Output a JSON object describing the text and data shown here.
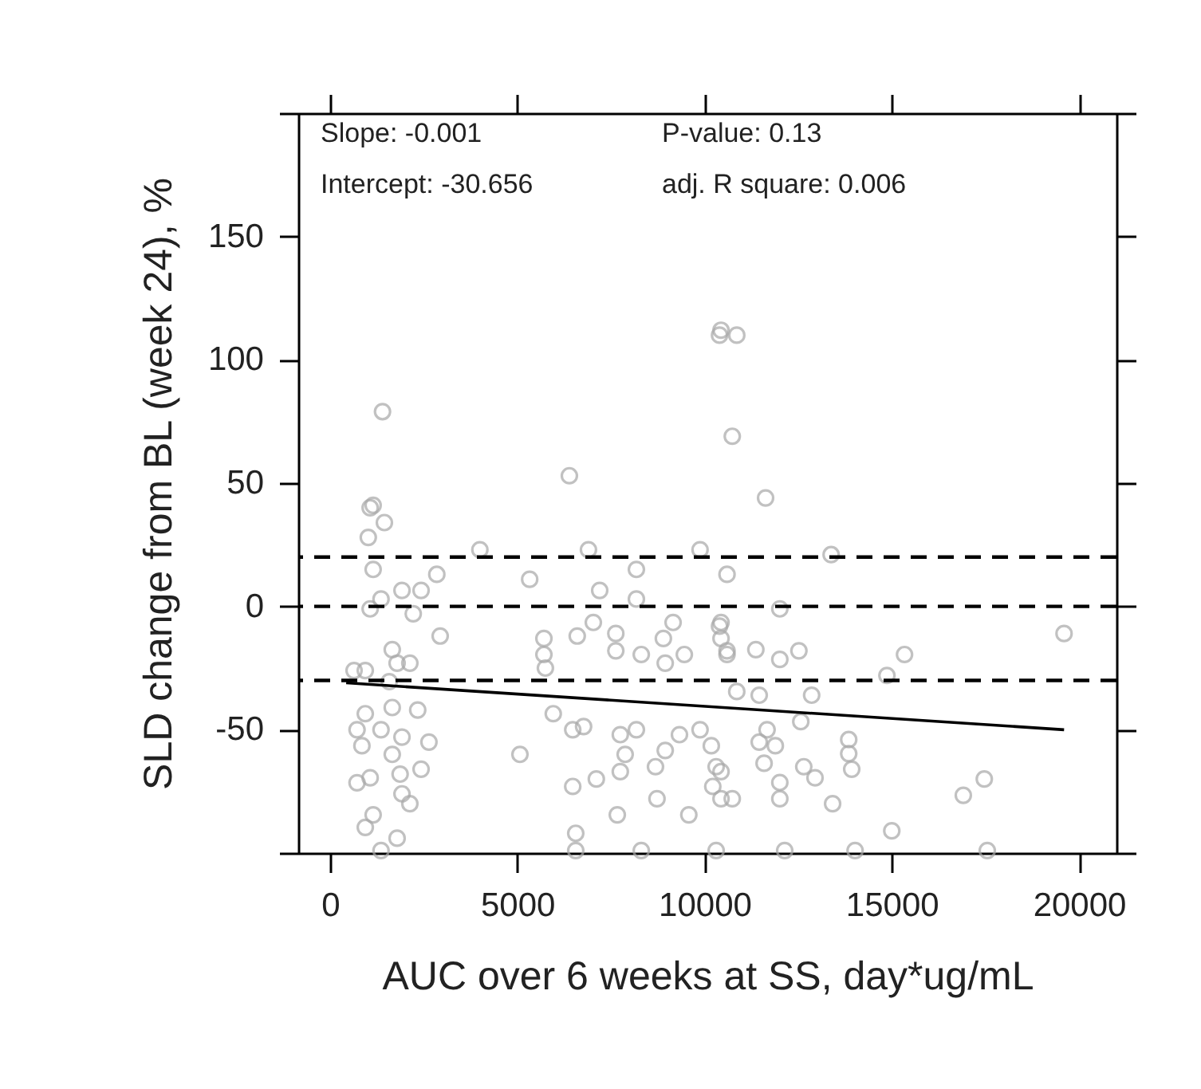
{
  "chart_data": {
    "type": "scatter",
    "xlabel": "AUC over 6 weeks at SS, day*ug/mL",
    "ylabel": "SLD change from BL (week 24), %",
    "annotations": [
      "Slope: -0.001",
      "P-value: 0.13",
      "Intercept: -30.656",
      "adj. R square: 0.006"
    ],
    "xlim": [
      -850,
      21000
    ],
    "ylim": [
      -100,
      200
    ],
    "xticks": [
      0,
      5000,
      10000,
      15000,
      20000
    ],
    "yticks": [
      {
        "value": -100,
        "label": null
      },
      -50,
      0,
      50,
      100,
      150,
      {
        "value": 200,
        "label": null
      }
    ],
    "grid": false,
    "ref_lines": [
      {
        "axis": "y",
        "value": 20,
        "line_style": "dashed",
        "color": "#000000"
      },
      {
        "axis": "y",
        "value": 0,
        "line_style": "dashed",
        "color": "#000000"
      },
      {
        "axis": "y",
        "value": -30,
        "line_style": "dashed",
        "color": "#000000"
      }
    ],
    "series": [
      {
        "marker": "circle",
        "color": "#a8a8a8",
        "x": [
          1400,
          10860,
          10400,
          10740,
          11630,
          6390,
          10440,
          1150,
          1070,
          1450,
          1020,
          1150,
          2850,
          2430,
          1920,
          1070,
          1360,
          2220,
          2940,
          4000,
          5330,
          6900,
          8180,
          9880,
          10600,
          7200,
          8180,
          5710,
          5710,
          5750,
          6600,
          7030,
          7630,
          7630,
          8310,
          8900,
          9160,
          9460,
          8950,
          10440,
          10440,
          10600,
          640,
          940,
          1660,
          1790,
          2130,
          1580,
          940,
          1660,
          2340,
          720,
          850,
          1360,
          1920,
          2640,
          1660,
          2430,
          720,
          1070,
          1870,
          1920,
          2130,
          1150,
          940,
          1790,
          5070,
          5960,
          6480,
          6560,
          6480,
          6770,
          7110,
          7750,
          8180,
          7880,
          7750,
          7670,
          8690,
          8950,
          9330,
          8730,
          9580,
          9880,
          10180,
          10310,
          10220,
          10440,
          6560,
          8310,
          10310,
          1360,
          13380,
          12010,
          10400,
          10600,
          11370,
          12010,
          12520,
          12860,
          11460,
          10860,
          14870,
          15340,
          19600,
          12570,
          11670,
          11460,
          11890,
          13850,
          13850,
          13930,
          12650,
          12950,
          11590,
          12010,
          10440,
          10740,
          12010,
          13420,
          16910,
          17470,
          15000,
          12140,
          14020,
          17550
        ],
        "values": [
          79,
          110,
          110,
          69,
          44,
          53,
          112,
          41,
          40,
          34,
          28,
          15,
          13,
          6.5,
          6.5,
          -1,
          3,
          -3,
          -12,
          23,
          11,
          23,
          15,
          23,
          13,
          6.5,
          3,
          -13,
          -19.5,
          -25,
          -12,
          -6.5,
          -11,
          -18,
          -19.5,
          -13,
          -6.5,
          -19.5,
          -23,
          -6.5,
          -13,
          -19.5,
          -26,
          -26,
          -17.5,
          -23,
          -23,
          -30.5,
          -43.5,
          -41,
          -42,
          -50,
          -56.5,
          -50,
          -53,
          -55,
          -60,
          -66,
          -71.5,
          -69.5,
          -68,
          -76,
          -80,
          -84.5,
          -89.6,
          -94,
          -60,
          -43.5,
          -73,
          -92,
          -50,
          -48.7,
          -70,
          -52,
          -50,
          -60,
          -67,
          -84.5,
          -65,
          -58.4,
          -52,
          -78,
          -84.5,
          -50,
          -56.5,
          -65,
          -73,
          -78,
          -99,
          -99,
          -99,
          -99,
          21,
          -1,
          -8,
          -18,
          -17.5,
          -21.5,
          -18,
          -36,
          -36,
          -34.5,
          -28,
          -19.5,
          -11,
          -46.7,
          -50,
          -55,
          -56.5,
          -54,
          -59.7,
          -66,
          -65,
          -69.5,
          -63.6,
          -71.4,
          -67,
          -78,
          -78,
          -80,
          -76.6,
          -70,
          -91,
          -99,
          -99,
          -99
        ]
      },
      {
        "type": "line",
        "marker": "none",
        "color": "#000000",
        "x": [
          430,
          19600
        ],
        "values": [
          -31,
          -50
        ]
      }
    ]
  }
}
